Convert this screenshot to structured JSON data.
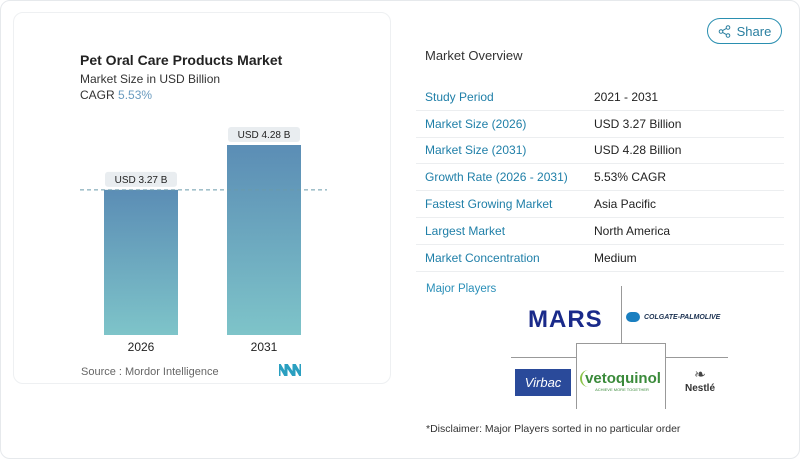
{
  "header": {
    "share_label": "Share",
    "share_icon": "share-icon"
  },
  "chart_card": {
    "title": "Pet Oral Care Products Market",
    "subtitle": "Market Size in USD Billion",
    "cagr_label": "CAGR",
    "cagr_value": "5.53%",
    "source": "Source :  Mordor Intelligence",
    "logo": "Mordor Intelligence"
  },
  "chart_data": {
    "type": "bar",
    "categories": [
      "2026",
      "2031"
    ],
    "values": [
      3.27,
      4.28
    ],
    "data_labels": [
      "USD 3.27 B",
      "USD 4.28 B"
    ],
    "title": "Pet Oral Care Products Market",
    "ylabel": "Market Size in USD Billion",
    "ylim": [
      0,
      4.28
    ],
    "grid": false,
    "reference_line": 3.27,
    "colors": [
      "#5b8db5",
      "#7ec4c9"
    ]
  },
  "overview": {
    "title": "Market Overview",
    "rows": [
      {
        "label": "Study Period",
        "value": "2021 - 2031"
      },
      {
        "label": "Market Size (2026)",
        "value": "USD 3.27 Billion"
      },
      {
        "label": "Market Size (2031)",
        "value": "USD 4.28 Billion"
      },
      {
        "label": "Growth Rate (2026 - 2031)",
        "value": "5.53% CAGR"
      },
      {
        "label": "Fastest Growing Market",
        "value": "Asia Pacific"
      },
      {
        "label": "Largest Market",
        "value": "North America"
      },
      {
        "label": "Market Concentration",
        "value": "Medium"
      }
    ]
  },
  "players": {
    "title": "Major Players",
    "logos": [
      "MARS",
      "COLGATE-PALMOLIVE",
      "Virbac",
      "vetoquinol",
      "ACHIEVE MORE TOGETHER",
      "Nestlé"
    ],
    "disclaimer": "*Disclaimer: Major Players sorted in no particular order"
  }
}
